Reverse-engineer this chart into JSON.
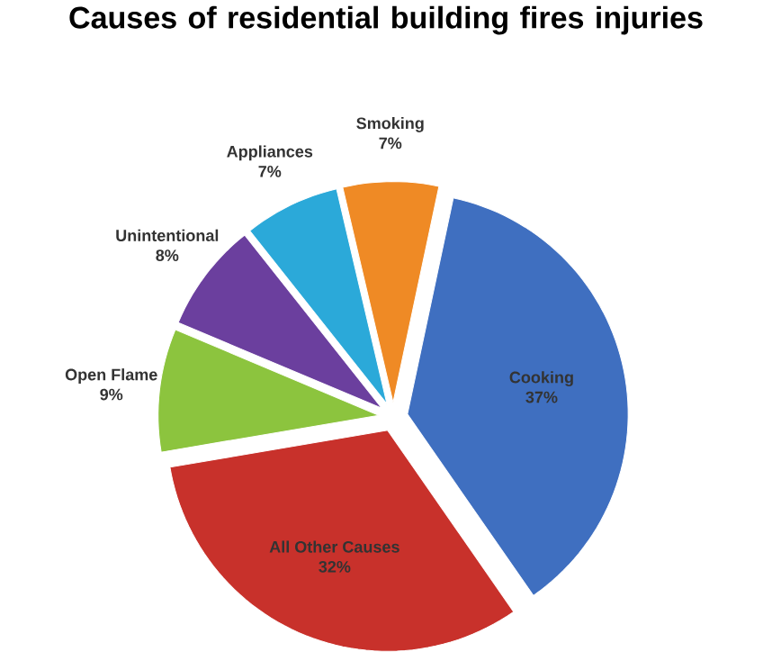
{
  "chart_data": {
    "type": "pie",
    "title": "Causes of residential building fires injuries",
    "categories": [
      "Cooking",
      "All Other Causes",
      "Open Flame",
      "Unintentional",
      "Appliances",
      "Smoking"
    ],
    "values": [
      37,
      32,
      9,
      8,
      7,
      7
    ],
    "value_labels": [
      "37%",
      "32%",
      "9%",
      "8%",
      "7%",
      "7%"
    ],
    "colors": [
      "#3f6fc0",
      "#c8312b",
      "#8cc43e",
      "#6b3f9e",
      "#2ba9d9",
      "#ef8a25"
    ]
  }
}
